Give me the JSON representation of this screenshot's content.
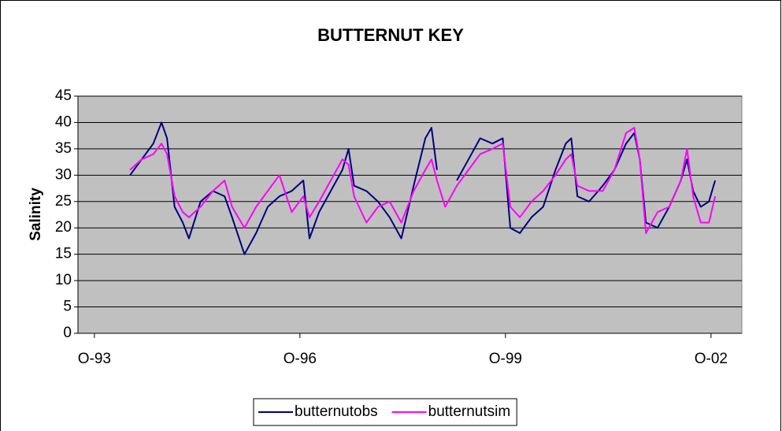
{
  "chart_data": {
    "type": "line",
    "title": "BUTTERNUT KEY",
    "y_label": "Salinity",
    "x": [
      1994.27,
      1994.44,
      1994.61,
      1994.73,
      1994.81,
      1994.92,
      1995.04,
      1995.13,
      1995.3,
      1995.48,
      1995.65,
      1995.76,
      1995.94,
      1996.11,
      1996.28,
      1996.45,
      1996.63,
      1996.8,
      1996.89,
      1997.03,
      1997.2,
      1997.37,
      1997.46,
      1997.54,
      1997.72,
      1997.89,
      1998.06,
      1998.23,
      1998.41,
      1998.58,
      1998.67,
      1998.75,
      1998.87,
      1999.04,
      1999.21,
      1999.38,
      1999.56,
      1999.71,
      1999.82,
      1999.96,
      2000.13,
      2000.3,
      2000.48,
      2000.63,
      2000.71,
      2000.8,
      2000.97,
      2001.17,
      2001.34,
      2001.51,
      2001.63,
      2001.71,
      2001.8,
      2001.97,
      2002.14,
      2002.31,
      2002.4,
      2002.49,
      2002.6,
      2002.72,
      2002.81
    ],
    "series": [
      {
        "name": "butternutobs",
        "color": "#000080",
        "values": [
          30,
          33,
          36,
          40,
          37,
          24,
          21,
          18,
          25,
          27,
          26,
          22,
          15,
          19,
          24,
          26,
          27,
          29,
          18,
          23,
          27,
          31,
          35,
          28,
          27,
          25,
          22,
          18,
          28,
          37,
          39,
          31,
          null,
          29,
          33,
          37,
          36,
          37,
          20,
          19,
          22,
          24,
          31,
          36,
          37,
          26,
          25,
          28,
          31,
          36,
          38,
          33,
          21,
          20,
          24,
          29,
          33,
          27,
          24,
          25,
          29
        ]
      },
      {
        "name": "butternutsim",
        "color": "#ff00ff",
        "values": [
          31,
          33,
          34,
          36,
          34,
          26,
          23,
          22,
          24,
          27,
          29,
          24,
          20,
          24,
          27,
          30,
          23,
          26,
          22,
          25,
          29,
          33,
          32,
          26,
          21,
          24,
          25,
          21,
          27,
          31,
          33,
          29,
          24,
          28,
          31,
          34,
          35,
          36,
          24,
          22,
          25,
          27,
          30,
          33,
          34,
          28,
          27,
          27,
          31,
          38,
          39,
          33,
          19,
          23,
          24,
          29,
          35,
          26,
          21,
          21,
          26
        ]
      }
    ],
    "xlim": [
      1993.51,
      2003.2
    ],
    "xticks": [
      {
        "value": 1993.75,
        "label": "O-93"
      },
      {
        "value": 1996.75,
        "label": "O-96"
      },
      {
        "value": 1999.75,
        "label": "O-99"
      },
      {
        "value": 2002.75,
        "label": "O-02"
      }
    ],
    "ylim": [
      0,
      45
    ],
    "yticks": [
      0,
      5,
      10,
      15,
      20,
      25,
      30,
      35,
      40,
      45
    ],
    "grid": true,
    "plot_background": "#c0c0c0",
    "legend": "bottom"
  }
}
